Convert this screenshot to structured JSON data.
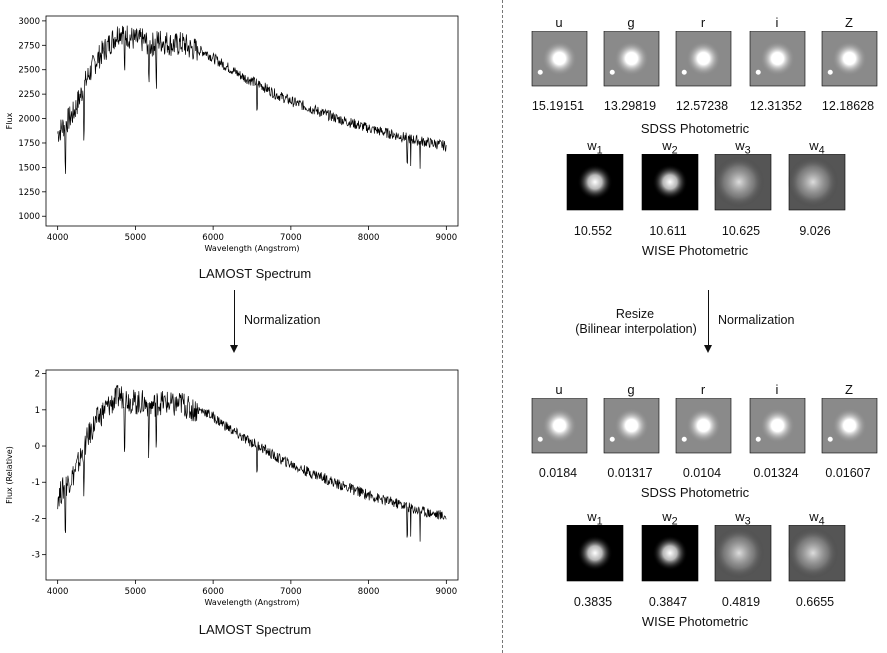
{
  "left": {
    "top_chart_caption": "LAMOST Spectrum",
    "bottom_chart_caption": "LAMOST Spectrum",
    "step_label": "Normalization"
  },
  "right": {
    "top_bands": [
      "u",
      "g",
      "r",
      "i",
      "Z"
    ],
    "top_sdss_values": [
      "15.19151",
      "13.29819",
      "12.57238",
      "12.31352",
      "12.18628"
    ],
    "sdss_caption_top": "SDSS Photometric",
    "wise_bands_html": [
      "w<sub>1</sub>",
      "w<sub>2</sub>",
      "w<sub>3</sub>",
      "w<sub>4</sub>"
    ],
    "wise_values_top": [
      "10.552",
      "10.611",
      "10.625",
      "9.026"
    ],
    "wise_caption_top": "WISE Photometric",
    "resize_label_line1": "Resize",
    "resize_label_line2": "(Bilinear interpolation)",
    "norm_label": "Normalization",
    "bottom_bands": [
      "u",
      "g",
      "r",
      "i",
      "Z"
    ],
    "bottom_sdss_values": [
      "0.0184",
      "0.01317",
      "0.0104",
      "0.01324",
      "0.01607"
    ],
    "sdss_caption_bottom": "SDSS Photometric",
    "wise_values_bottom": [
      "0.3835",
      "0.3847",
      "0.4819",
      "0.6655"
    ],
    "wise_caption_bottom": "WISE Photometric"
  },
  "chart_data": [
    {
      "type": "line",
      "title": "",
      "xlabel": "Wavelength (Angstrom)",
      "ylabel": "Flux",
      "xlim": [
        3850,
        9150
      ],
      "ylim": [
        900,
        3050
      ],
      "xticks": [
        4000,
        5000,
        6000,
        7000,
        8000,
        9000
      ],
      "yticks": [
        1000,
        1250,
        1500,
        1750,
        2000,
        2250,
        2500,
        2750,
        3000
      ],
      "x": [
        4000,
        4100,
        4200,
        4300,
        4400,
        4500,
        4600,
        4700,
        4800,
        4900,
        5000,
        5100,
        5200,
        5300,
        5400,
        5500,
        5600,
        5700,
        5800,
        5900,
        6000,
        6200,
        6400,
        6600,
        6800,
        7000,
        7200,
        7400,
        7600,
        7800,
        8000,
        8200,
        8400,
        8600,
        8800,
        9000
      ],
      "values": [
        1850,
        1950,
        2050,
        2250,
        2450,
        2600,
        2700,
        2800,
        2900,
        2850,
        2800,
        2800,
        2750,
        2800,
        2780,
        2750,
        2770,
        2720,
        2700,
        2680,
        2620,
        2520,
        2420,
        2350,
        2250,
        2180,
        2120,
        2060,
        2000,
        1950,
        1900,
        1860,
        1820,
        1780,
        1750,
        1720
      ]
    },
    {
      "type": "line",
      "title": "",
      "xlabel": "Wavelength (Angstrom)",
      "ylabel": "Flux (Relative)",
      "xlim": [
        3850,
        9150
      ],
      "ylim": [
        -3.7,
        2.1
      ],
      "xticks": [
        4000,
        5000,
        6000,
        7000,
        8000,
        9000
      ],
      "yticks": [
        -3,
        -2,
        -1,
        0,
        1,
        2
      ],
      "x": [
        4000,
        4100,
        4200,
        4300,
        4400,
        4500,
        4600,
        4700,
        4800,
        4900,
        5000,
        5100,
        5200,
        5300,
        5400,
        5500,
        5600,
        5700,
        5800,
        5900,
        6000,
        6200,
        6400,
        6600,
        6800,
        7000,
        7200,
        7400,
        7600,
        7800,
        8000,
        8200,
        8400,
        8600,
        8800,
        9000
      ],
      "values": [
        -1.4,
        -1.1,
        -0.8,
        -0.3,
        0.3,
        0.7,
        1.0,
        1.2,
        1.4,
        1.3,
        1.2,
        1.2,
        1.1,
        1.2,
        1.2,
        1.1,
        1.2,
        1.0,
        1.0,
        0.95,
        0.8,
        0.5,
        0.2,
        0.0,
        -0.3,
        -0.5,
        -0.7,
        -0.85,
        -1.05,
        -1.2,
        -1.35,
        -1.5,
        -1.6,
        -1.75,
        -1.85,
        -1.95
      ]
    }
  ]
}
